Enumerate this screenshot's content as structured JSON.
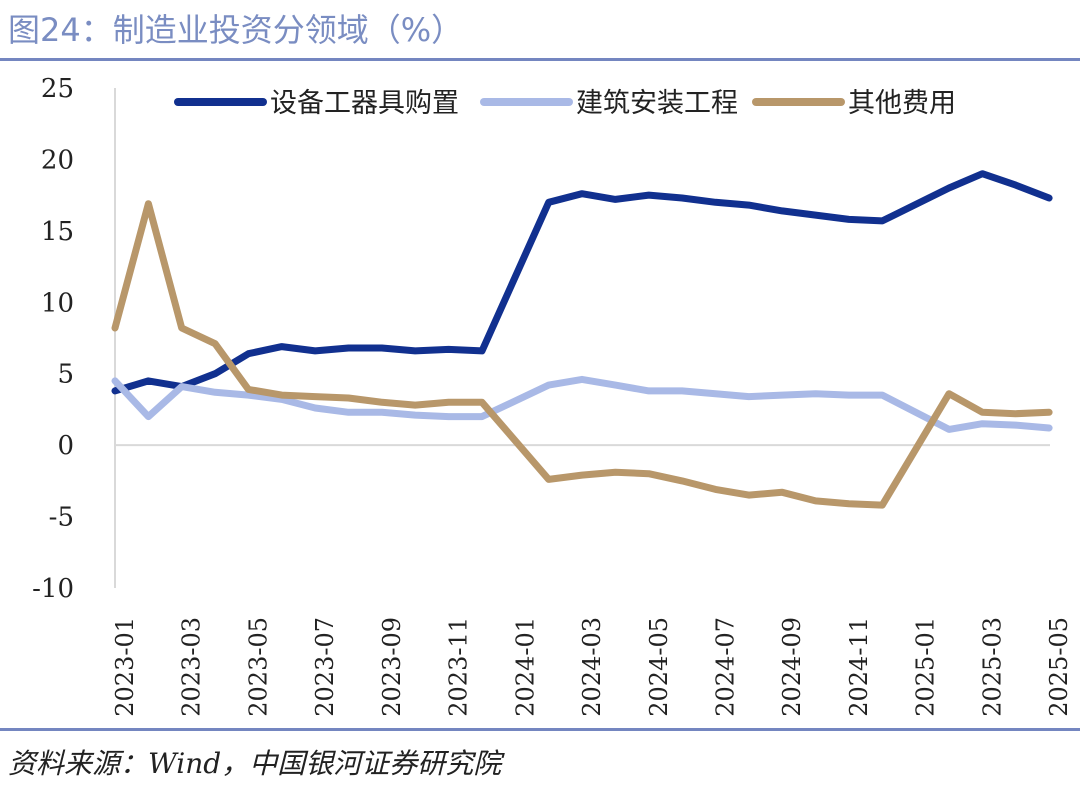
{
  "header": {
    "title": "图24：制造业投资分领域（%）"
  },
  "footer": {
    "source": "资料来源：Wind，中国银河证券研究院"
  },
  "colors": {
    "rule": "#7486c0",
    "title": "#7a8dc2"
  },
  "chart_data": {
    "type": "line",
    "title": "图24：制造业投资分领域（%）",
    "xlabel": "",
    "ylabel": "",
    "ylim": [
      -10,
      25
    ],
    "yticks": [
      25,
      20,
      15,
      10,
      5,
      0,
      -5,
      -10
    ],
    "legend_position": "top",
    "grid": false,
    "x": [
      "2023-01",
      "2023-02",
      "2023-03",
      "2023-04",
      "2023-05",
      "2023-06",
      "2023-07",
      "2023-08",
      "2023-09",
      "2023-10",
      "2023-11",
      "2023-12",
      "2024-01",
      "2024-02",
      "2024-03",
      "2024-04",
      "2024-05",
      "2024-06",
      "2024-07",
      "2024-08",
      "2024-09",
      "2024-10",
      "2024-11",
      "2024-12",
      "2025-01",
      "2025-02",
      "2025-03",
      "2025-04",
      "2025-05"
    ],
    "xticks": [
      "2023-01",
      "2023-03",
      "2023-05",
      "2023-07",
      "2023-09",
      "2023-11",
      "2024-01",
      "2024-03",
      "2024-05",
      "2024-07",
      "2024-09",
      "2024-11",
      "2025-01",
      "2025-03",
      "2025-05"
    ],
    "series": [
      {
        "name": "设备工器具购置",
        "color": "#11308f",
        "values": [
          3.8,
          4.5,
          4.1,
          5.0,
          6.4,
          6.9,
          6.6,
          6.8,
          6.8,
          6.6,
          6.7,
          6.6,
          null,
          17.0,
          17.6,
          17.2,
          17.5,
          17.3,
          17.0,
          16.8,
          16.4,
          16.1,
          15.8,
          15.7,
          null,
          18.0,
          19.0,
          18.2,
          17.3
        ]
      },
      {
        "name": "建筑安装工程",
        "color": "#a9b9e6",
        "values": [
          4.5,
          2.0,
          4.1,
          3.7,
          3.5,
          3.2,
          2.6,
          2.3,
          2.3,
          2.1,
          2.0,
          2.0,
          null,
          4.2,
          4.6,
          4.2,
          3.8,
          3.8,
          3.6,
          3.4,
          3.5,
          3.6,
          3.5,
          3.5,
          null,
          1.1,
          1.5,
          1.4,
          1.2
        ]
      },
      {
        "name": "其他费用",
        "color": "#b8976a",
        "values": [
          8.2,
          16.9,
          8.2,
          7.1,
          3.9,
          3.5,
          3.4,
          3.3,
          3.0,
          2.8,
          3.0,
          3.0,
          null,
          -2.4,
          -2.1,
          -1.9,
          -2.0,
          -2.5,
          -3.1,
          -3.5,
          -3.3,
          -3.9,
          -4.1,
          -4.2,
          null,
          3.6,
          2.3,
          2.2,
          2.3
        ]
      }
    ]
  }
}
